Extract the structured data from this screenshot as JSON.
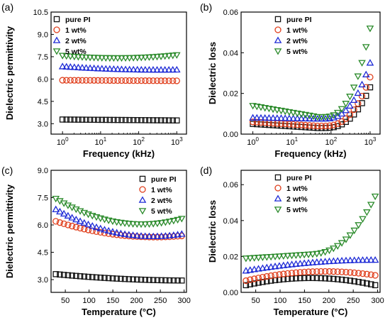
{
  "chart_data": [
    {
      "type": "scatter",
      "panel_label": "(a)",
      "xlabel": "Frequency (kHz)",
      "ylabel": "Dielectric permittivity",
      "x_scale": "log",
      "xlim": [
        0.5,
        1800
      ],
      "ylim": [
        2.3,
        10.5
      ],
      "xticks": [
        1,
        10,
        100,
        1000
      ],
      "xtick_labels": [
        {
          "base": "10",
          "exp": "0"
        },
        {
          "base": "10",
          "exp": "1"
        },
        {
          "base": "10",
          "exp": "2"
        },
        {
          "base": "10",
          "exp": "3"
        }
      ],
      "yticks": [
        3.0,
        4.5,
        6.0,
        7.5,
        9.0,
        10.5
      ],
      "ytick_labels": [
        "3.0",
        "4.5",
        "6.0",
        "7.5",
        "9.0",
        "10.5"
      ],
      "legend_position": "top-left",
      "x_range": [
        1,
        1000
      ],
      "n_points": 30,
      "series": [
        {
          "name": "pure PI",
          "marker": "square",
          "color": "#111111",
          "y_start": 3.28,
          "y_mid": 3.25,
          "y_end": 3.22
        },
        {
          "name": "1 wt%",
          "marker": "circle",
          "color": "#e0401e",
          "y_start": 5.92,
          "y_mid": 5.9,
          "y_end": 5.88
        },
        {
          "name": "2 wt%",
          "marker": "triangle-up",
          "color": "#1e2bd6",
          "y_start": 6.84,
          "y_mid": 6.65,
          "y_end": 6.62
        },
        {
          "name": "5 wt%",
          "marker": "triangle-down",
          "color": "#2a8a2a",
          "y_start": 7.58,
          "y_mid": 7.42,
          "y_end": 7.62
        }
      ]
    },
    {
      "type": "scatter",
      "panel_label": "(b)",
      "xlabel": "Frequency (kHz)",
      "ylabel": "Dielectric loss",
      "x_scale": "log",
      "xlim": [
        0.5,
        1800
      ],
      "ylim": [
        0,
        0.06
      ],
      "xticks": [
        1,
        10,
        100,
        1000
      ],
      "xtick_labels": [
        {
          "base": "10",
          "exp": "0"
        },
        {
          "base": "10",
          "exp": "1"
        },
        {
          "base": "10",
          "exp": "2"
        },
        {
          "base": "10",
          "exp": "3"
        }
      ],
      "yticks": [
        0.0,
        0.02,
        0.04,
        0.06
      ],
      "ytick_labels": [
        "0.00",
        "0.02",
        "0.04",
        "0.06"
      ],
      "legend_position": "top-center",
      "x_range": [
        1,
        1000
      ],
      "n_points": 30,
      "series": [
        {
          "name": "pure PI",
          "marker": "square",
          "color": "#111111",
          "y_start": 0.005,
          "y_mid": 0.003,
          "y_end": 0.023
        },
        {
          "name": "1 wt%",
          "marker": "circle",
          "color": "#e0401e",
          "y_start": 0.006,
          "y_mid": 0.004,
          "y_end": 0.028
        },
        {
          "name": "2 wt%",
          "marker": "triangle-up",
          "color": "#1e2bd6",
          "y_start": 0.008,
          "y_mid": 0.0075,
          "y_end": 0.035
        },
        {
          "name": "5 wt%",
          "marker": "triangle-down",
          "color": "#2a8a2a",
          "y_start": 0.014,
          "y_mid": 0.0085,
          "y_end": 0.052
        }
      ]
    },
    {
      "type": "scatter",
      "panel_label": "(c)",
      "xlabel": "Temperature (°C)",
      "ylabel": "Dielectric permittivity",
      "x_scale": "linear",
      "xlim": [
        20,
        305
      ],
      "ylim": [
        2.3,
        9.0
      ],
      "xticks": [
        50,
        100,
        150,
        200,
        250,
        300
      ],
      "xtick_labels": [
        "50",
        "100",
        "150",
        "200",
        "250",
        "300"
      ],
      "yticks": [
        3.0,
        4.5,
        6.0,
        7.5,
        9.0
      ],
      "ytick_labels": [
        "3.0",
        "4.5",
        "6.0",
        "7.5",
        "9.0"
      ],
      "legend_position": "top-right",
      "x_range": [
        30,
        295
      ],
      "n_points": 32,
      "series": [
        {
          "name": "pure PI",
          "marker": "square",
          "color": "#111111",
          "y_start": 3.3,
          "y_mid": 3.05,
          "y_end": 2.95
        },
        {
          "name": "1 wt%",
          "marker": "circle",
          "color": "#e0401e",
          "y_start": 6.2,
          "y_mid": 5.45,
          "y_end": 5.4
        },
        {
          "name": "2 wt%",
          "marker": "triangle-up",
          "color": "#1e2bd6",
          "y_start": 6.85,
          "y_mid": 5.55,
          "y_end": 5.5
        },
        {
          "name": "5 wt%",
          "marker": "triangle-down",
          "color": "#2a8a2a",
          "y_start": 7.45,
          "y_mid": 6.15,
          "y_end": 6.35
        }
      ]
    },
    {
      "type": "scatter",
      "panel_label": "(d)",
      "xlabel": "Temperature (°C)",
      "ylabel": "Dielectric loss",
      "x_scale": "linear",
      "xlim": [
        20,
        305
      ],
      "ylim": [
        0,
        0.068
      ],
      "xticks": [
        50,
        100,
        150,
        200,
        250,
        300
      ],
      "xtick_labels": [
        "50",
        "100",
        "150",
        "200",
        "250",
        "300"
      ],
      "yticks": [
        0.0,
        0.02,
        0.04,
        0.06
      ],
      "ytick_labels": [
        "0.00",
        "0.02",
        "0.04",
        "0.06"
      ],
      "legend_position": "top-center",
      "x_range": [
        30,
        295
      ],
      "n_points": 32,
      "series": [
        {
          "name": "pure PI",
          "marker": "square",
          "color": "#111111",
          "y_start": 0.004,
          "y_mid": 0.008,
          "y_end": 0.004
        },
        {
          "name": "1 wt%",
          "marker": "circle",
          "color": "#e0401e",
          "y_start": 0.0065,
          "y_mid": 0.0115,
          "y_end": 0.0095
        },
        {
          "name": "2 wt%",
          "marker": "triangle-up",
          "color": "#1e2bd6",
          "y_start": 0.012,
          "y_mid": 0.0165,
          "y_end": 0.018
        },
        {
          "name": "5 wt%",
          "marker": "triangle-down",
          "color": "#2a8a2a",
          "y_start": 0.019,
          "y_mid": 0.022,
          "y_end": 0.052
        }
      ]
    }
  ]
}
